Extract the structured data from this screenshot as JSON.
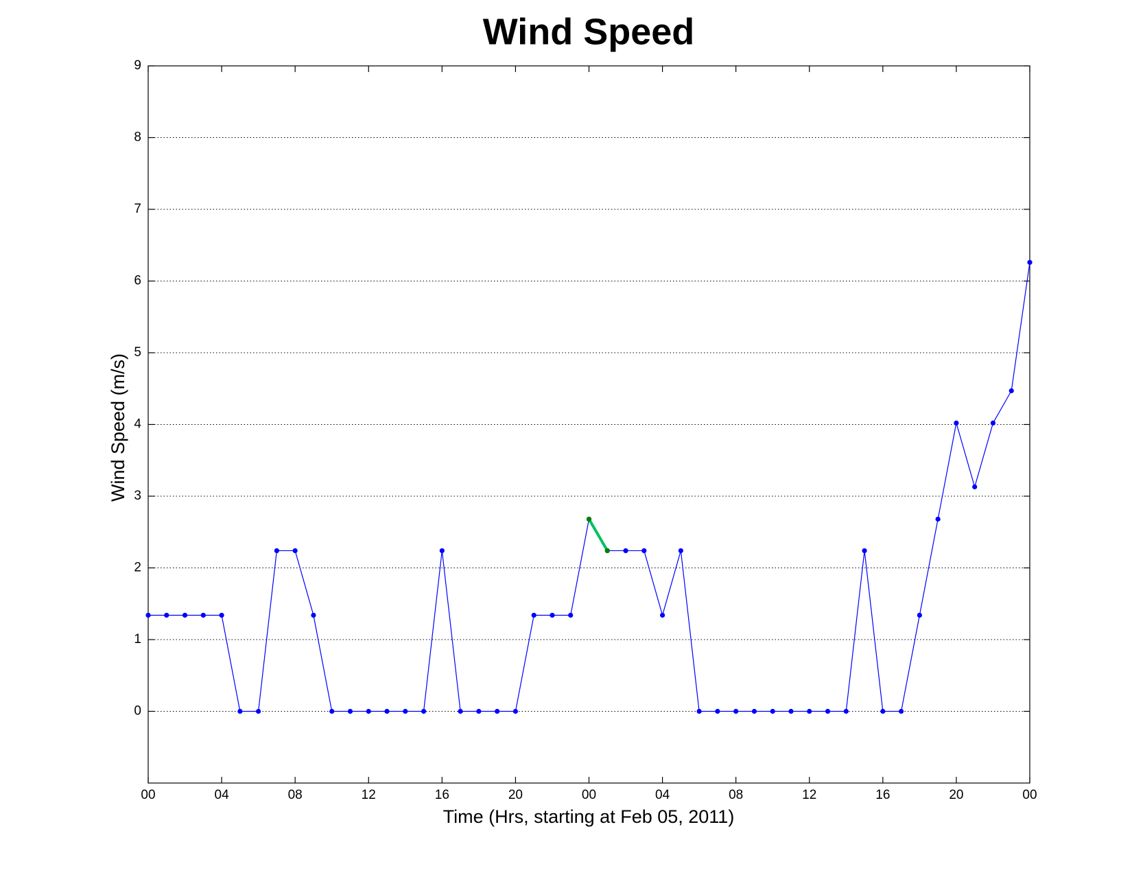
{
  "chart_data": {
    "type": "line",
    "title": "Wind Speed",
    "x_label": "Time (Hrs, starting at Feb 05, 2011)",
    "y_label": "Wind Speed (m/s)",
    "x": [
      0,
      1,
      2,
      3,
      4,
      5,
      6,
      7,
      8,
      9,
      10,
      11,
      12,
      13,
      14,
      15,
      16,
      17,
      18,
      19,
      20,
      21,
      22,
      23,
      24,
      25,
      26,
      27,
      28,
      29,
      30,
      31,
      32,
      33,
      34,
      35,
      36,
      37,
      38,
      39,
      40,
      41,
      42,
      43,
      44,
      45,
      46,
      47,
      48
    ],
    "series": [
      {
        "color": "#0000ff",
        "values": [
          1.34,
          1.34,
          1.34,
          1.34,
          1.34,
          0,
          0,
          2.24,
          2.24,
          1.34,
          0,
          0,
          0,
          0,
          0,
          0,
          2.24,
          0,
          0,
          0,
          0,
          1.34,
          1.34,
          1.34,
          2.68,
          2.24,
          2.24,
          2.24,
          1.34,
          2.24,
          0,
          0,
          0,
          0,
          0,
          0,
          0,
          0,
          0,
          2.24,
          0,
          0,
          1.34,
          2.68,
          4.02,
          3.13,
          4.02,
          4.47,
          6.26
        ]
      },
      {
        "color": "#00c060",
        "marker_color": "#008000",
        "values": [
          null,
          null,
          null,
          null,
          null,
          null,
          null,
          null,
          null,
          null,
          null,
          null,
          null,
          null,
          null,
          null,
          null,
          null,
          null,
          null,
          null,
          null,
          null,
          null,
          2.68,
          2.24,
          null,
          null,
          null,
          null,
          null,
          null,
          null,
          null,
          null,
          null,
          null,
          null,
          null,
          null,
          null,
          null,
          null,
          null,
          null,
          null,
          null,
          null,
          null
        ]
      }
    ],
    "xlim": [
      0,
      48
    ],
    "xticks": [
      {
        "value": 0,
        "label": "00"
      },
      {
        "value": 4,
        "label": "04"
      },
      {
        "value": 8,
        "label": "08"
      },
      {
        "value": 12,
        "label": "12"
      },
      {
        "value": 16,
        "label": "16"
      },
      {
        "value": 20,
        "label": "20"
      },
      {
        "value": 24,
        "label": "00"
      },
      {
        "value": 28,
        "label": "04"
      },
      {
        "value": 32,
        "label": "08"
      },
      {
        "value": 36,
        "label": "12"
      },
      {
        "value": 40,
        "label": "16"
      },
      {
        "value": 44,
        "label": "20"
      },
      {
        "value": 48,
        "label": "00"
      }
    ],
    "ylim": [
      -1,
      9
    ],
    "yticks": [
      0,
      1,
      2,
      3,
      4,
      5,
      6,
      7,
      8,
      9
    ],
    "grid": true
  }
}
